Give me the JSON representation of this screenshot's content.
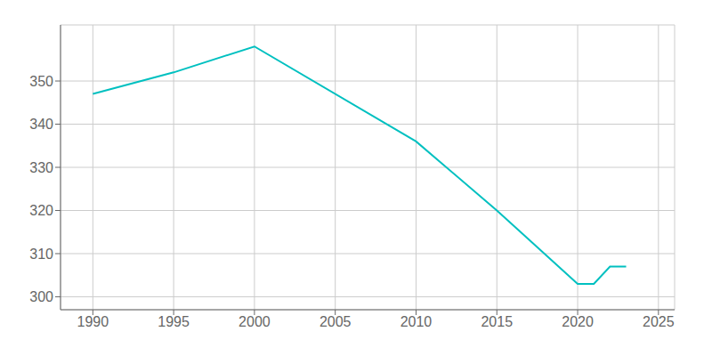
{
  "chart_data": {
    "type": "line",
    "x": [
      1990,
      1995,
      2000,
      2010,
      2015,
      2020,
      2021,
      2022,
      2023
    ],
    "values": [
      347,
      352,
      358,
      336,
      320,
      303,
      303,
      307,
      307
    ],
    "color": "#00C0C0",
    "xlim": [
      1988,
      2026
    ],
    "ylim": [
      297,
      363
    ],
    "xticks": [
      1990,
      1995,
      2000,
      2005,
      2010,
      2015,
      2020,
      2025
    ],
    "yticks": [
      300,
      310,
      320,
      330,
      340,
      350
    ],
    "grid": true
  }
}
